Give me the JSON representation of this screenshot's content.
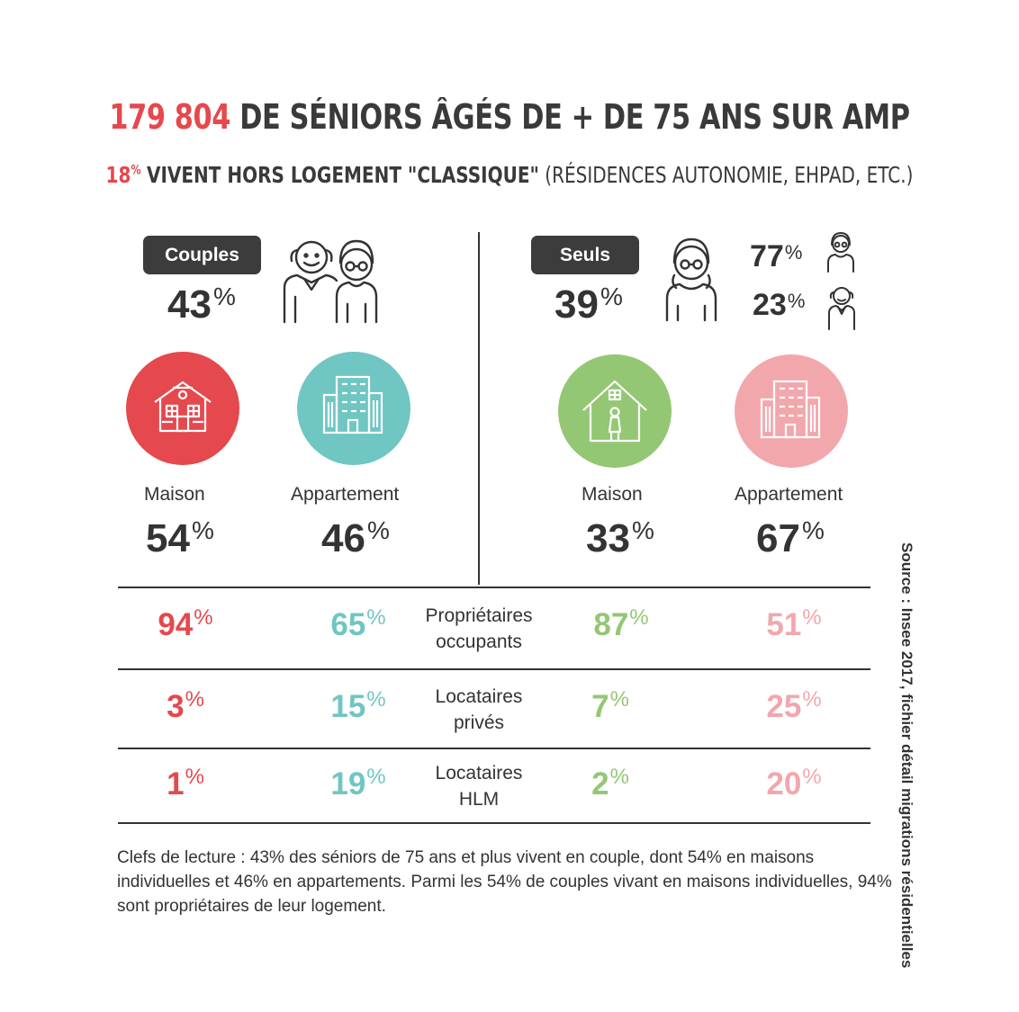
{
  "title": {
    "number": "179 804",
    "text": "DE SÉNIORS ÂGÉS DE + DE 75 ANS SUR AMP"
  },
  "subtitle": {
    "pct": "18",
    "pct_unit": "%",
    "bold": "VIVENT HORS LOGEMENT \"CLASSIQUE\"",
    "rest": "(RÉSIDENCES AUTONOMIE, EHPAD, ETC.)"
  },
  "couples": {
    "label": "Couples",
    "pct": "43",
    "maison": {
      "label": "Maison",
      "pct": "54"
    },
    "appartement": {
      "label": "Appartement",
      "pct": "46"
    }
  },
  "seuls": {
    "label": "Seuls",
    "pct": "39",
    "women_pct": "77",
    "men_pct": "23",
    "maison": {
      "label": "Maison",
      "pct": "33"
    },
    "appartement": {
      "label": "Appartement",
      "pct": "67"
    }
  },
  "unit": "%",
  "table": {
    "rows": [
      {
        "label_line1": "Propriétaires",
        "label_line2": "occupants",
        "values": [
          "94",
          "65",
          "87",
          "51"
        ]
      },
      {
        "label_line1": "Locataires",
        "label_line2": "privés",
        "values": [
          "3",
          "15",
          "7",
          "25"
        ]
      },
      {
        "label_line1": "Locataires",
        "label_line2": "HLM",
        "values": [
          "1",
          "19",
          "2",
          "20"
        ]
      }
    ]
  },
  "colors": {
    "red": "#e5484d",
    "teal": "#6fc6c3",
    "green": "#93c774",
    "pink": "#f2a7ad",
    "dark": "#333333"
  },
  "icons": {
    "couple": "elderly-couple-icon",
    "woman": "elderly-woman-icon",
    "man": "elderly-man-icon",
    "house": "house-icon",
    "building": "apartment-building-icon"
  },
  "note": "Clefs de lecture : 43% des séniors de 75 ans et plus vivent en couple, dont 54% en maisons individuelles et 46% en appartements. Parmi les 54% de couples vivant en maisons individuelles, 94% sont propriétaires de leur logement.",
  "source": "Source : Insee 2017, fichier détail migrations résidentielles"
}
